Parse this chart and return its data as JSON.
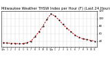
{
  "title": "Milwaukee Weather THSW Index per Hour (F) (Last 24 Hours)",
  "title_fontsize": 3.8,
  "background_color": "#ffffff",
  "line_color": "#cc0000",
  "marker_color": "#000000",
  "grid_color": "#bbbbbb",
  "hours": [
    0,
    1,
    2,
    3,
    4,
    5,
    6,
    7,
    8,
    9,
    10,
    11,
    12,
    13,
    14,
    15,
    16,
    17,
    18,
    19,
    20,
    21,
    22,
    23
  ],
  "values": [
    36,
    35,
    34,
    34,
    33,
    33,
    36,
    40,
    52,
    65,
    80,
    98,
    112,
    106,
    96,
    84,
    74,
    65,
    56,
    50,
    46,
    44,
    42,
    40
  ],
  "ylim_min": 25,
  "ylim_max": 120,
  "yticks": [
    40,
    60,
    80,
    100,
    120
  ],
  "ytick_labels": [
    "40",
    "60",
    "80",
    "100",
    "120"
  ],
  "xtick_labels": [
    "12a",
    "1",
    "2",
    "3",
    "4",
    "5",
    "6",
    "7",
    "8",
    "9",
    "10",
    "11",
    "12p",
    "1",
    "2",
    "3",
    "4",
    "5",
    "6",
    "7",
    "8",
    "9",
    "10",
    "11"
  ]
}
